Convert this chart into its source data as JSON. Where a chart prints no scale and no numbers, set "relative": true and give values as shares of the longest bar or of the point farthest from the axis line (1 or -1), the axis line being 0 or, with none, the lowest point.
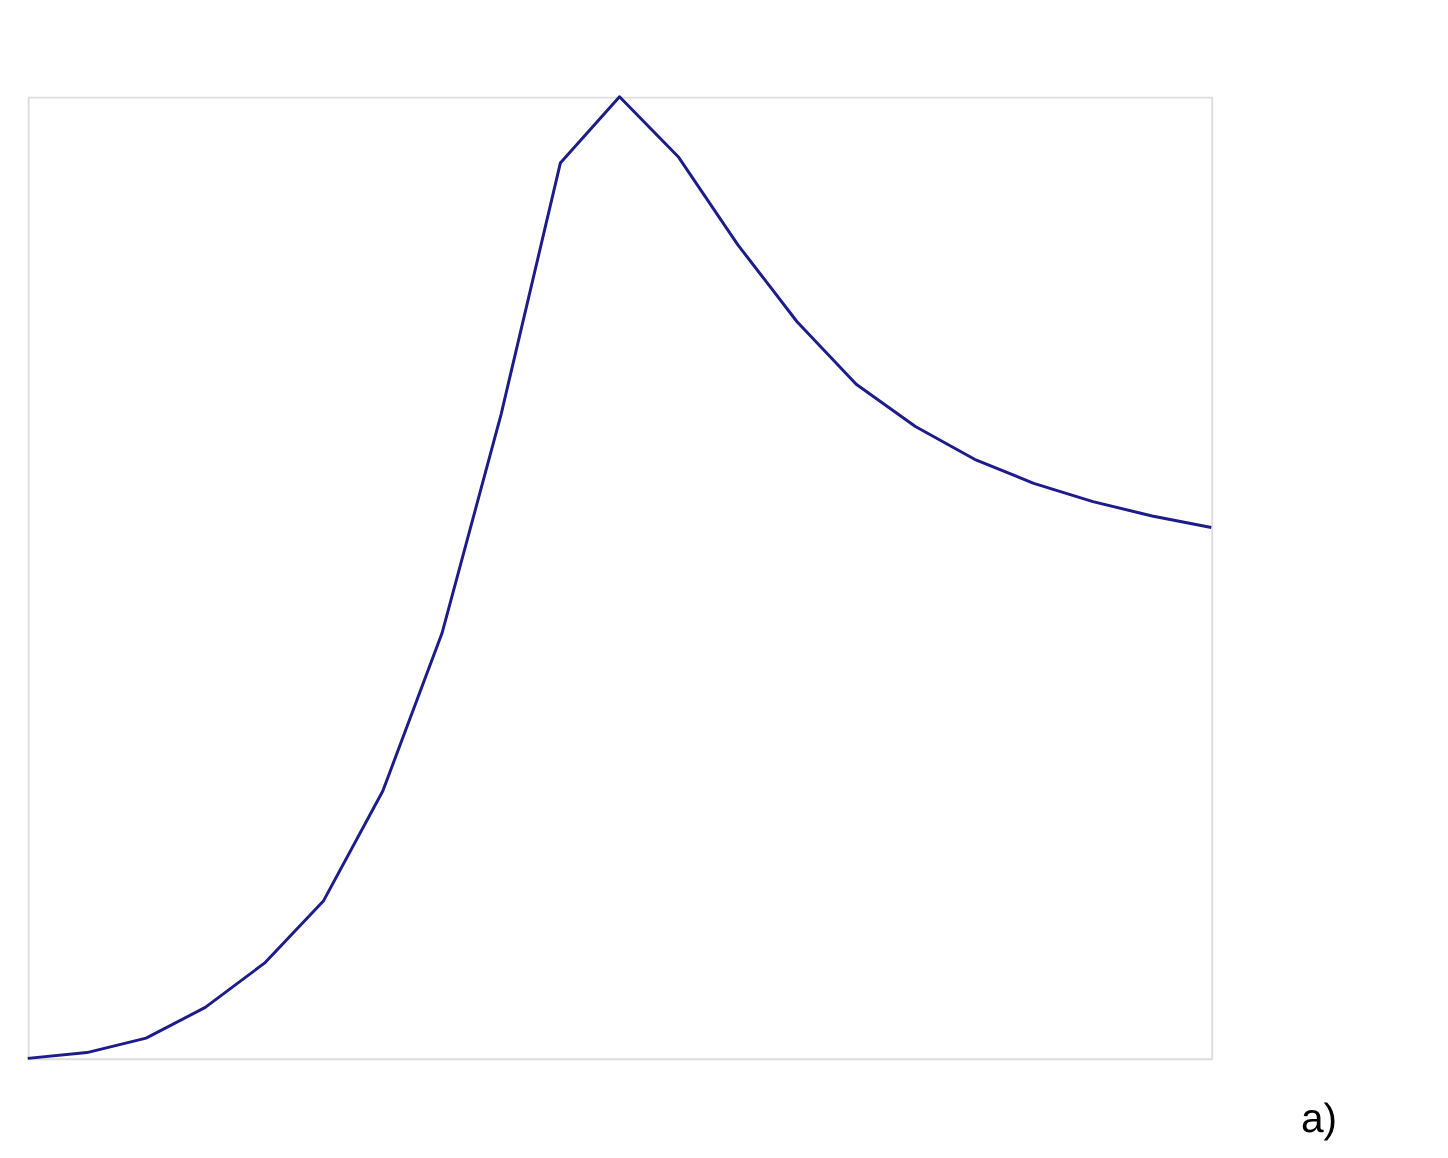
{
  "chart_data": {
    "type": "line",
    "relative": true,
    "categories": [
      null,
      null,
      null,
      null,
      null,
      null,
      null,
      null,
      null,
      null,
      null,
      null,
      null,
      null,
      null,
      null,
      null,
      null,
      null,
      null,
      null
    ],
    "series": [
      {
        "color": "#1c1c8a",
        "values": [
          0,
          0.006,
          0.021,
          0.053,
          0.099,
          0.164,
          0.278,
          0.442,
          0.67,
          0.931,
          1,
          0.937,
          0.846,
          0.766,
          0.701,
          0.657,
          0.623,
          0.598,
          0.579,
          0.564,
          0.552
        ]
      }
    ],
    "annotations": [
      "a)"
    ],
    "marker": "none",
    "grid": false,
    "legend": false
  }
}
